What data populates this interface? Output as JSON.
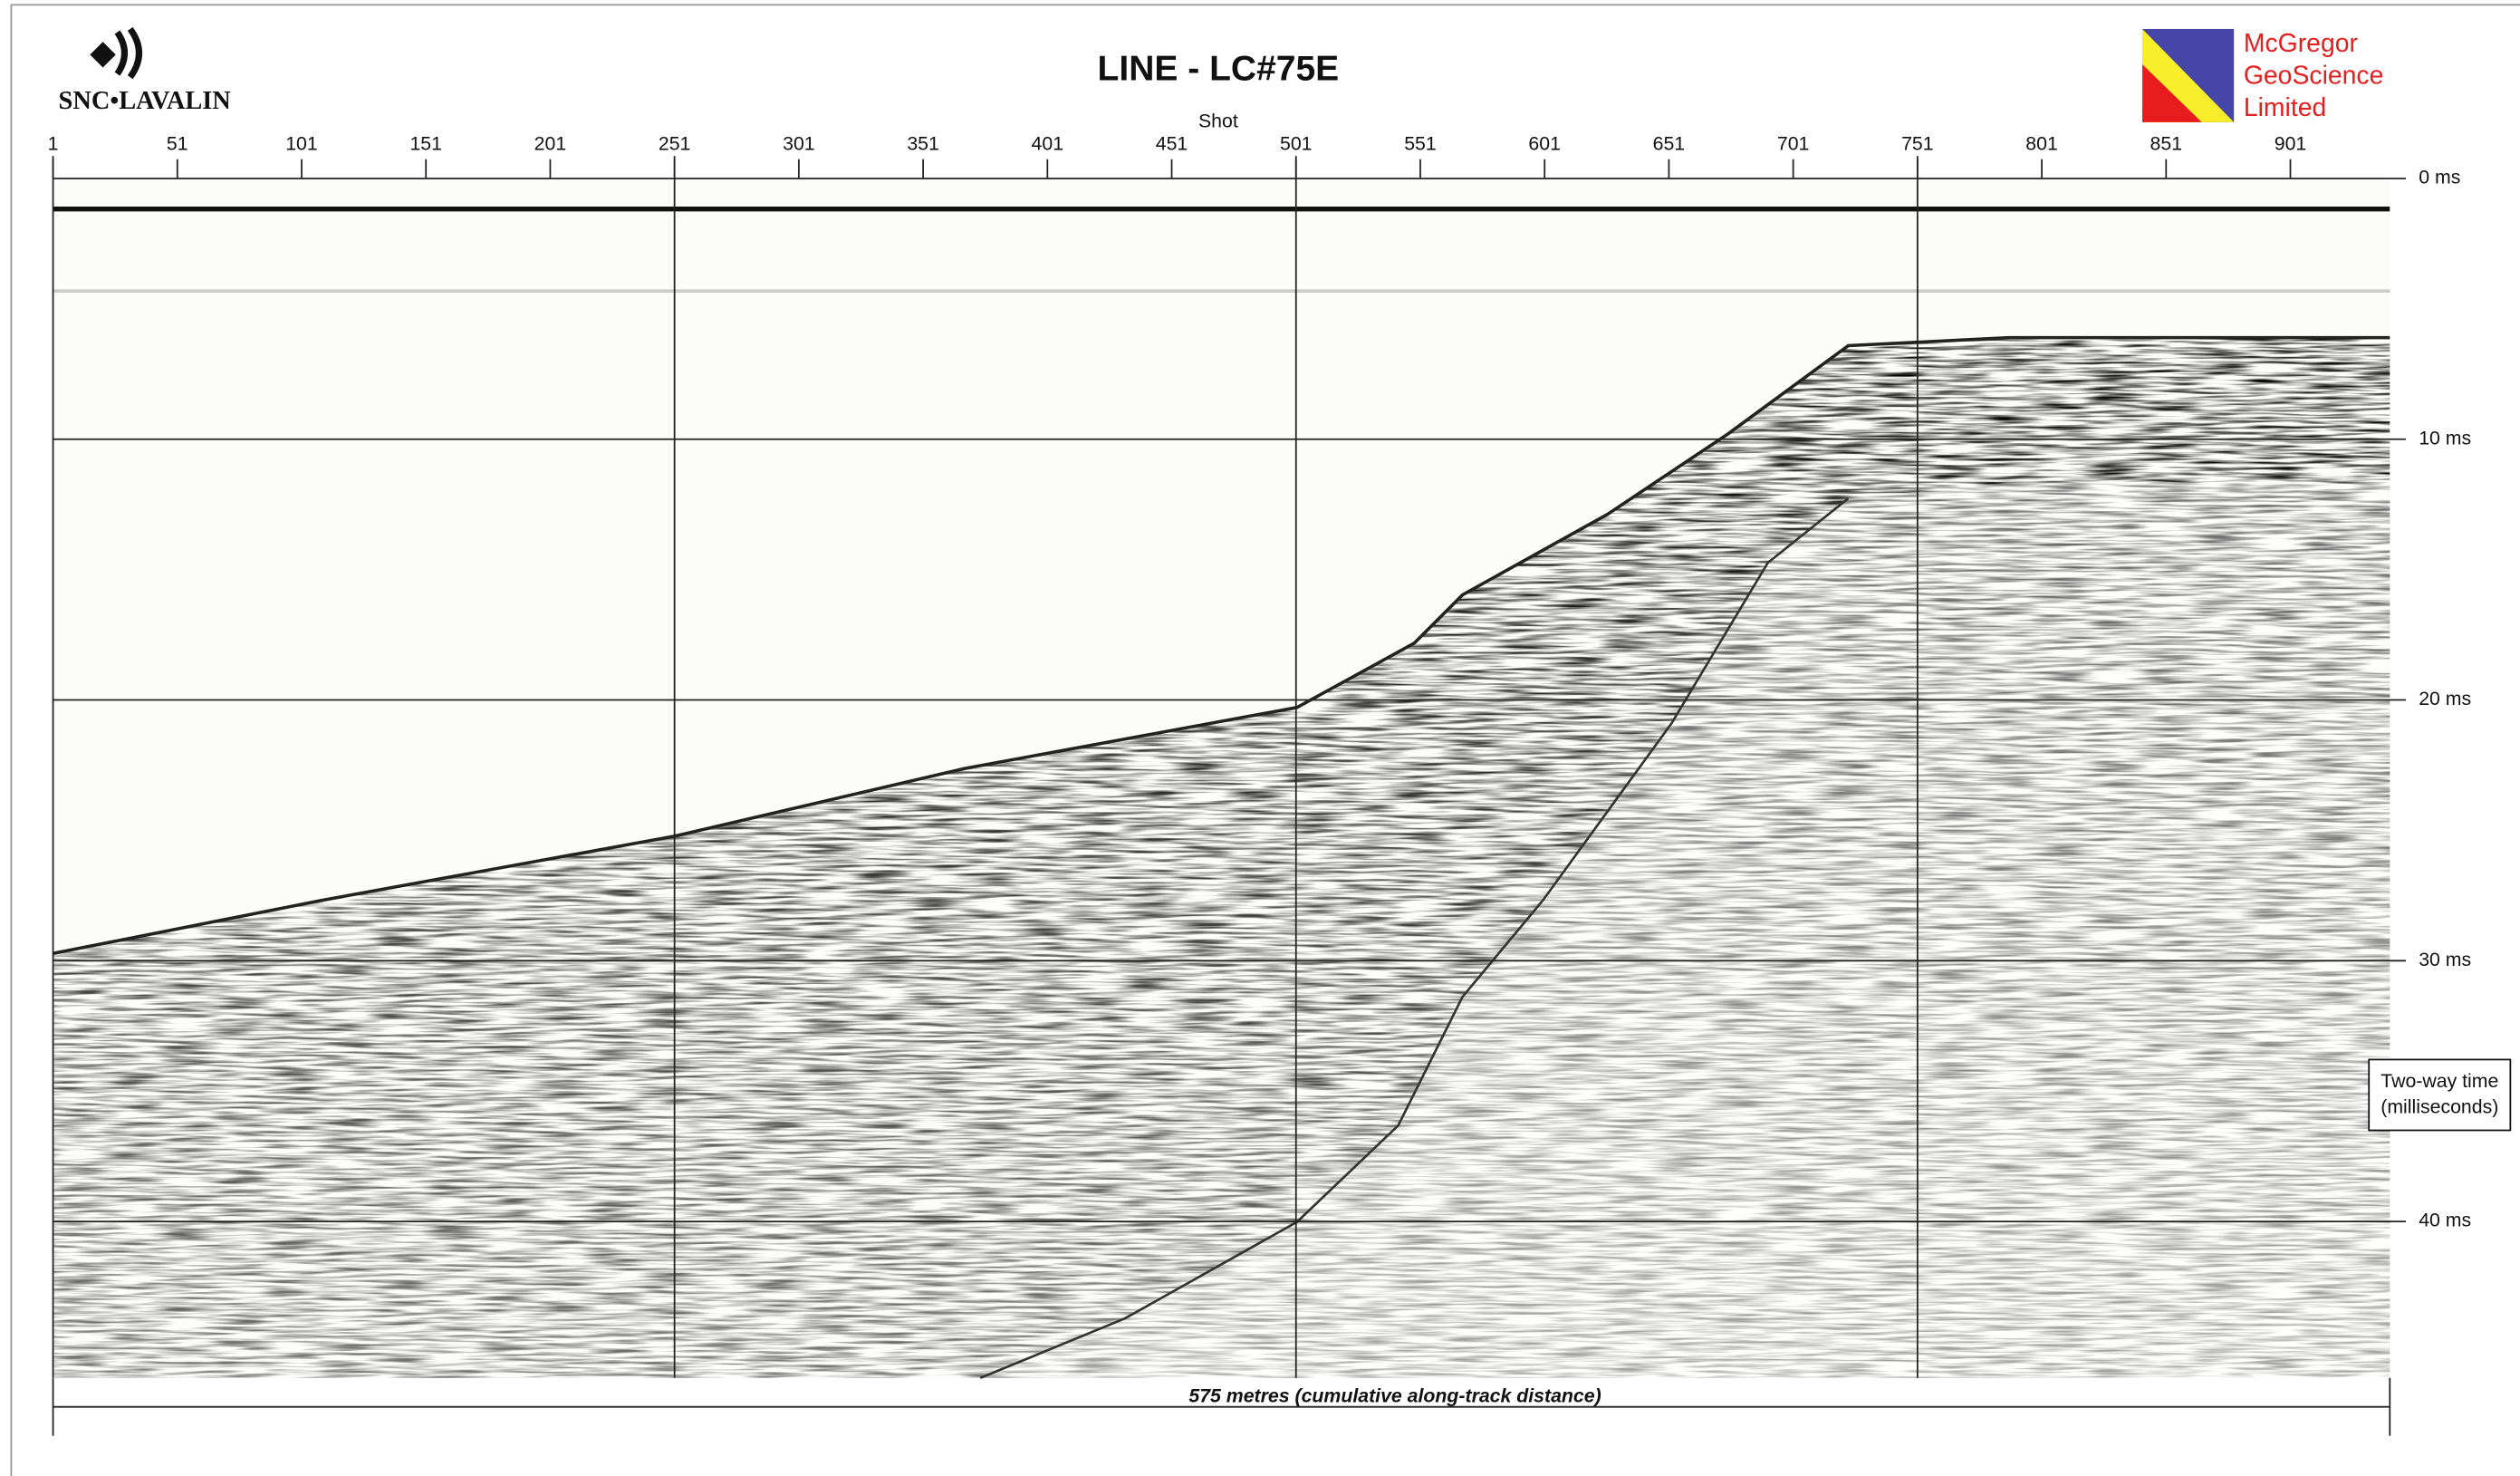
{
  "chart_data": {
    "type": "seismic",
    "title": "LINE - LC#75E",
    "xlabel": "Shot",
    "xlim": [
      1,
      941
    ],
    "xticks": [
      1,
      51,
      101,
      151,
      201,
      251,
      301,
      351,
      401,
      451,
      501,
      551,
      601,
      651,
      701,
      751,
      801,
      851,
      901
    ],
    "x_grid": [
      251,
      501,
      751
    ],
    "ylim": [
      0,
      46
    ],
    "yticks": [
      {
        "value": 0,
        "label": "0 ms"
      },
      {
        "value": 10,
        "label": "10 ms"
      },
      {
        "value": 20,
        "label": "20 ms"
      },
      {
        "value": 30,
        "label": "30 ms"
      },
      {
        "value": 40,
        "label": "40 ms"
      }
    ],
    "ylabel": [
      "Two-way time",
      "(milliseconds)"
    ],
    "scale_bar": "575 metres (cumulative along-track distance)",
    "logos": {
      "left": "SNC•LAVALIN",
      "right": [
        "McGregor",
        "GeoScience",
        "Limited"
      ]
    }
  }
}
